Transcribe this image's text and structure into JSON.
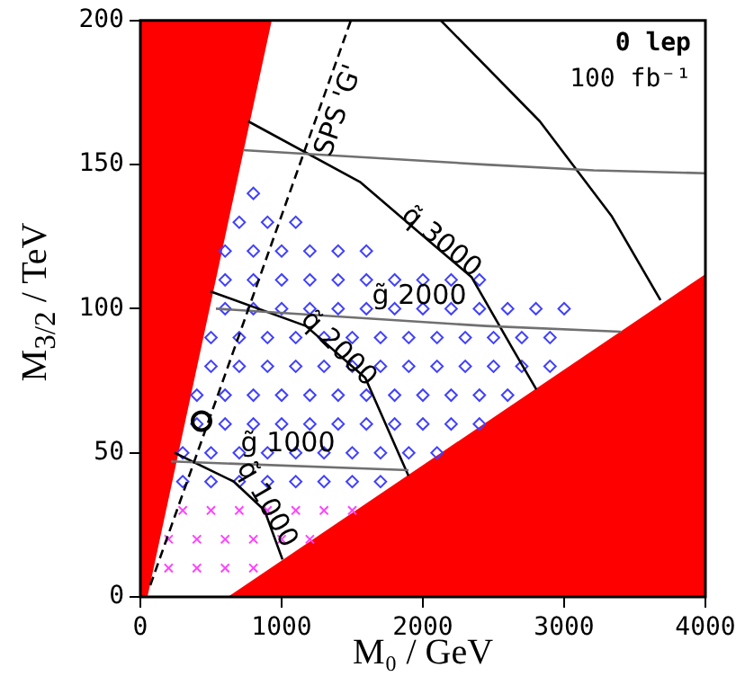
{
  "chart_data": {
    "type": "scatter",
    "xlabel": "M₀ / GeV",
    "ylabel": "M$_{3/2}$ / TeV",
    "xlim": [
      0,
      4000
    ],
    "ylim": [
      0,
      200
    ],
    "xticks": [
      0,
      1000,
      2000,
      3000,
      4000
    ],
    "yticks": [
      0,
      50,
      100,
      150,
      200
    ],
    "grid": false,
    "legend": false,
    "annotations": [
      "0 lep",
      "100 fb⁻¹",
      {
        "text": "SPS 'G'",
        "x": 1277,
        "y": 171
      },
      {
        "text": "q̃ 3000",
        "x": 2127,
        "y": 123
      },
      {
        "text": "q̃ 2000",
        "x": 1401,
        "y": 86
      },
      {
        "text": "q̃ 1000",
        "x": 892,
        "y": 32
      },
      {
        "text": "g̃ 2000",
        "x": 1975,
        "y": 104
      },
      {
        "text": "g̃ 1000",
        "x": 1045,
        "y": 53
      }
    ],
    "series": [
      {
        "type": "area",
        "color": "#ff0000",
        "x": [
          0,
          0,
          930,
          50
        ],
        "values": [
          0,
          200,
          200,
          0
        ]
      },
      {
        "type": "area",
        "color": "#ff0000",
        "x": [
          620,
          4000
        ],
        "values": [
          0,
          112
        ]
      },
      {
        "color": "#4040ff",
        "marker": "diamond",
        "x": [
          800,
          700,
          900,
          1100,
          600,
          800,
          1000,
          1200,
          1400,
          1600,
          600,
          800,
          1000,
          1200,
          1400,
          1600,
          1800,
          2000,
          2200,
          2400,
          600,
          800,
          1000,
          1200,
          1400,
          1600,
          1800,
          2000,
          2200,
          2400,
          2600,
          2800,
          3000,
          500,
          700,
          900,
          1100,
          1300,
          1500,
          1700,
          1900,
          2100,
          2300,
          2500,
          2700,
          2900,
          500,
          700,
          900,
          1100,
          1300,
          1500,
          1700,
          1900,
          2100,
          2300,
          2500,
          2700,
          2900,
          400,
          600,
          800,
          1000,
          1200,
          1400,
          1600,
          1800,
          2000,
          2200,
          2400,
          2600,
          400,
          600,
          800,
          1000,
          1200,
          1400,
          1600,
          1800,
          2000,
          2200,
          2400,
          300,
          500,
          700,
          900,
          1100,
          1300,
          1500,
          1700,
          1900,
          2100,
          300,
          500,
          700,
          900,
          1100,
          1300,
          1500,
          1700
        ],
        "values": [
          140,
          130,
          130,
          130,
          120,
          120,
          120,
          120,
          120,
          120,
          110,
          110,
          110,
          110,
          110,
          110,
          110,
          110,
          110,
          110,
          100,
          100,
          100,
          100,
          100,
          100,
          100,
          100,
          100,
          100,
          100,
          100,
          100,
          90,
          90,
          90,
          90,
          90,
          90,
          90,
          90,
          90,
          90,
          90,
          90,
          90,
          80,
          80,
          80,
          80,
          80,
          80,
          80,
          80,
          80,
          80,
          80,
          80,
          80,
          70,
          70,
          70,
          70,
          70,
          70,
          70,
          70,
          70,
          70,
          70,
          70,
          60,
          60,
          60,
          60,
          60,
          60,
          60,
          60,
          60,
          60,
          60,
          50,
          50,
          50,
          50,
          50,
          50,
          50,
          50,
          50,
          50,
          40,
          40,
          40,
          40,
          40,
          40,
          40,
          40
        ]
      },
      {
        "color": "#ff40ff",
        "marker": "cross",
        "x": [
          300,
          500,
          700,
          900,
          1100,
          1300,
          1500,
          200,
          400,
          600,
          800,
          1000,
          1200,
          200,
          400,
          600,
          800
        ],
        "values": [
          30,
          30,
          30,
          30,
          30,
          30,
          30,
          20,
          20,
          20,
          20,
          20,
          20,
          10,
          10,
          10,
          10
        ]
      },
      {
        "type": "line",
        "color": "#000000",
        "marker": "none",
        "line_style": "solid",
        "x": [
          764,
          1554,
          2127,
          2344,
          2637,
          2803
        ],
        "values": [
          165,
          144,
          120,
          111,
          86,
          72
        ]
      },
      {
        "type": "line",
        "color": "#000000",
        "marker": "none",
        "line_style": "solid",
        "x": [
          2127,
          2828,
          3338,
          3682
        ],
        "values": [
          200,
          165,
          132,
          103
        ]
      },
      {
        "type": "line",
        "color": "#000000",
        "marker": "none",
        "line_style": "solid",
        "x": [
          497,
          1172,
          1592,
          1898
        ],
        "values": [
          106,
          94,
          76,
          42
        ]
      },
      {
        "type": "line",
        "color": "#000000",
        "marker": "none",
        "line_style": "solid",
        "x": [
          242,
          662,
          879,
          1006
        ],
        "values": [
          50,
          40,
          30,
          13
        ]
      },
      {
        "type": "line",
        "color": "#707070",
        "marker": "none",
        "line_style": "solid",
        "x": [
          535,
          2446,
          3401
        ],
        "values": [
          100,
          94,
          92
        ]
      },
      {
        "type": "line",
        "color": "#707070",
        "marker": "none",
        "line_style": "solid",
        "x": [
          217,
          1898
        ],
        "values": [
          47,
          44
        ]
      },
      {
        "type": "line",
        "color": "#707070",
        "marker": "none",
        "line_style": "solid",
        "x": [
          726,
          2446,
          3210,
          4000
        ],
        "values": [
          155,
          150,
          148,
          147
        ]
      },
      {
        "type": "line",
        "color": "#000000",
        "marker": "none",
        "line_style": "dashed",
        "x": [
          70,
          1490
        ],
        "values": [
          4,
          200
        ]
      },
      {
        "color": "#000000",
        "marker": "circle",
        "x": [
          433
        ],
        "values": [
          61
        ]
      }
    ]
  }
}
